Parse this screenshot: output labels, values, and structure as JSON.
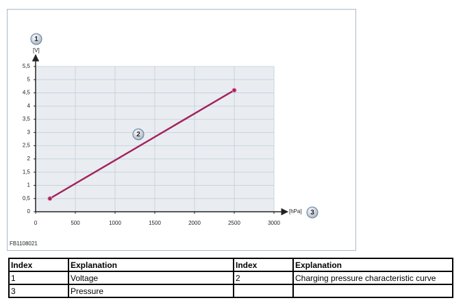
{
  "chart_data": {
    "type": "line",
    "y_label": "[V]",
    "x_label": "[hPa]",
    "callouts": [
      "1",
      "2",
      "3"
    ],
    "xlim": [
      0,
      3000
    ],
    "xticks": [
      0,
      500,
      1000,
      1500,
      2000,
      2500,
      3000
    ],
    "ylim": [
      0,
      5.5
    ],
    "yticks": [
      0,
      {
        "value": 0.5,
        "label": "0,5"
      },
      1,
      {
        "value": 1.5,
        "label": "1,5"
      },
      2,
      {
        "value": 2.5,
        "label": "2,5"
      },
      3,
      {
        "value": 3.5,
        "label": "3,5"
      },
      4,
      {
        "value": 4.5,
        "label": "4,5"
      },
      5,
      {
        "value": 5.5,
        "label": "5,5"
      }
    ],
    "grid": true,
    "series": [
      {
        "color": "#a3245e",
        "x": [
          180,
          2500
        ],
        "values": [
          0.5,
          4.6
        ]
      }
    ]
  },
  "figure_code": "FB1108021",
  "table": {
    "header": [
      "Index",
      "Explanation",
      "Index",
      "Explanation"
    ],
    "rows": [
      [
        "1",
        "Voltage",
        "2",
        "Charging pressure characteristic curve"
      ],
      [
        "3",
        "Pressure",
        null,
        null
      ]
    ]
  }
}
